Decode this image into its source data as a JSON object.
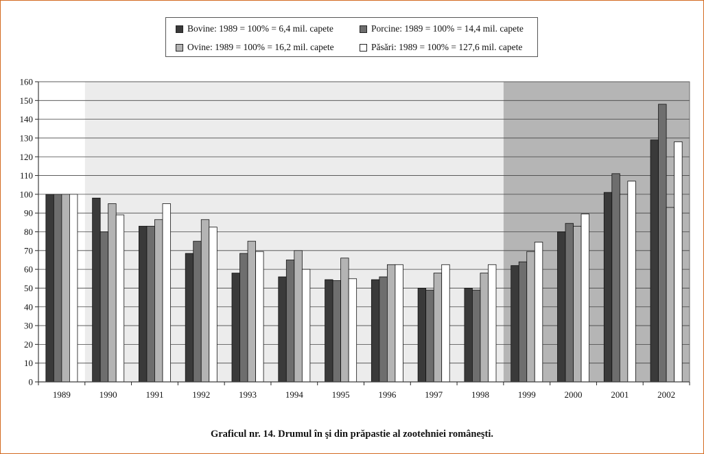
{
  "chart_data": {
    "type": "bar",
    "title": "",
    "xlabel": "",
    "ylabel": "",
    "ylim": [
      0,
      160
    ],
    "yticks": [
      0,
      10,
      20,
      30,
      40,
      50,
      60,
      70,
      80,
      90,
      100,
      110,
      120,
      130,
      140,
      150,
      160
    ],
    "grid": true,
    "legend_position": "top-center",
    "categories": [
      "1989",
      "1990",
      "1991",
      "1992",
      "1993",
      "1994",
      "1995",
      "1996",
      "1997",
      "1998",
      "1999",
      "2000",
      "2001",
      "2002"
    ],
    "series": [
      {
        "name": "Bovine: 1989 = 100% = 6,4 mil. capete",
        "color": "#3a3a3a",
        "values": [
          100,
          98,
          83,
          68.5,
          58,
          56,
          54.5,
          54.5,
          50,
          50,
          62,
          80,
          101,
          129
        ]
      },
      {
        "name": "Porcine: 1989 = 100% = 14,4 mil. capete",
        "color": "#6e6e6e",
        "values": [
          100,
          80,
          83,
          75,
          68.5,
          65,
          54,
          56,
          49,
          49,
          64,
          84.5,
          111,
          148
        ]
      },
      {
        "name": "Ovine: 1989 = 100% = 16,2 mil. capete",
        "color": "#b4b4b4",
        "values": [
          100,
          95,
          86.5,
          86.5,
          75,
          70,
          66,
          62.5,
          58,
          58,
          69.5,
          83,
          100,
          93
        ]
      },
      {
        "name": "Păsări: 1989 = 100% = 127,6 mil. capete",
        "color": "#ffffff",
        "values": [
          100,
          89,
          95,
          82.5,
          69.5,
          60,
          55,
          62.5,
          62.5,
          62.5,
          74.5,
          89.5,
          107,
          128
        ]
      }
    ],
    "background_bands": [
      {
        "from_category": "1989",
        "to_category": "1989",
        "color": "#ffffff"
      },
      {
        "from_category": "1990",
        "to_category": "1998",
        "color": "#ececec"
      },
      {
        "from_category": "1999",
        "to_category": "2002",
        "color": "#b5b5b5"
      }
    ]
  },
  "legend": {
    "items": [
      {
        "label": "Bovine: 1989 = 100% = 6,4 mil. capete",
        "color": "#3a3a3a"
      },
      {
        "label": "Porcine: 1989 = 100% = 14,4 mil. capete",
        "color": "#6e6e6e"
      },
      {
        "label": "Ovine: 1989 = 100% = 16,2 mil. capete",
        "color": "#b4b4b4"
      },
      {
        "label": "Păsări: 1989 = 100% = 127,6 mil. capete",
        "color": "#ffffff"
      }
    ]
  },
  "caption": "Graficul nr. 14. Drumul în şi din prăpastie al zootehniei româneşti."
}
